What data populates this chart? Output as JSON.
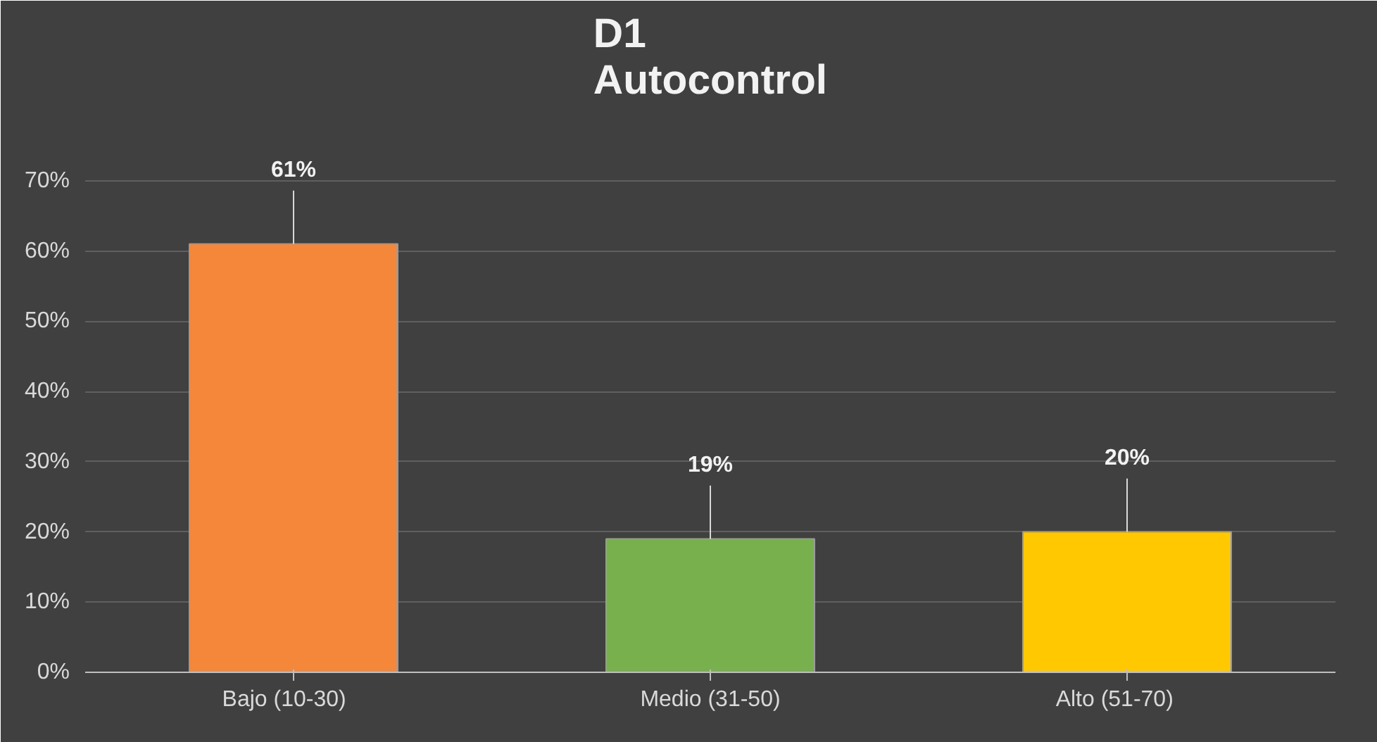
{
  "chart_data": {
    "type": "bar",
    "title": "D1\nAutocontrol",
    "categories": [
      "Bajo    (10-30)",
      "Medio (31-50)",
      "Alto     (51-70)"
    ],
    "values": [
      61,
      19,
      20
    ],
    "colors": [
      "#f5873a",
      "#77b04c",
      "#ffc800"
    ],
    "ylim": [
      0,
      80
    ],
    "yticks": [
      {
        "value": 0,
        "label": "0%"
      },
      {
        "value": 10,
        "label": "10%"
      },
      {
        "value": 20,
        "label": "20%"
      },
      {
        "value": 30,
        "label": "30%"
      },
      {
        "value": 40,
        "label": "40%"
      },
      {
        "value": 50,
        "label": "50%"
      },
      {
        "value": 60,
        "label": "60%"
      },
      {
        "value": 70,
        "label": "70%"
      }
    ],
    "value_labels": [
      "61%",
      "19%",
      "20%"
    ],
    "grid": "y"
  }
}
